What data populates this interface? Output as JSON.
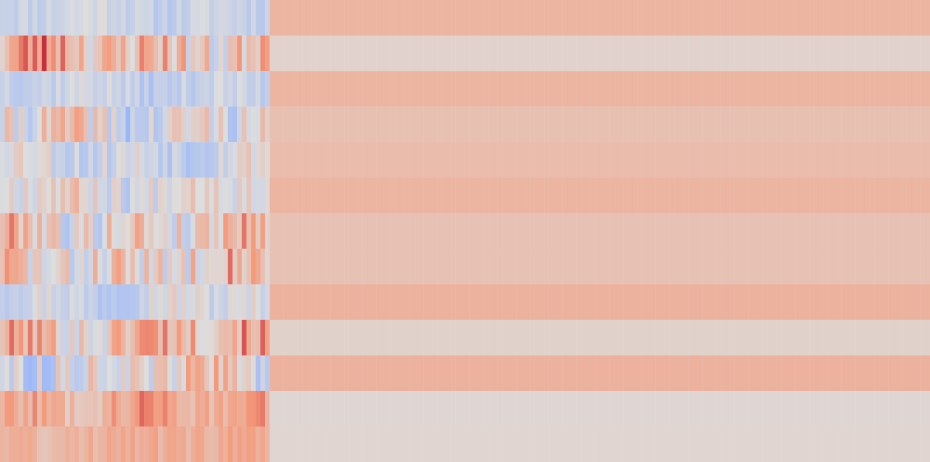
{
  "chart_data": {
    "type": "heatmap",
    "title": "",
    "xlabel": "",
    "ylabel": "",
    "rows": 13,
    "columns": 200,
    "value_range": [
      -1,
      1
    ],
    "colormap": "coolwarm",
    "color_stops": [
      {
        "value": -1.0,
        "color": "#3b4cc0"
      },
      {
        "value": -0.5,
        "color": "#8db0fe"
      },
      {
        "value": 0.0,
        "color": "#dddddd"
      },
      {
        "value": 0.5,
        "color": "#f49a7b"
      },
      {
        "value": 1.0,
        "color": "#b40426"
      }
    ],
    "active_column_count": 58,
    "trailing_row_values": [
      0.3,
      0.08,
      0.3,
      0.22,
      0.25,
      0.3,
      0.21,
      0.21,
      0.32,
      0.09,
      0.32,
      0.05,
      0.06
    ],
    "row_patterns": [
      {
        "row": 0,
        "mean": -0.1,
        "spread": 0.1,
        "seed": 11
      },
      {
        "row": 1,
        "mean": 0.3,
        "spread": 0.35,
        "seed": 23
      },
      {
        "row": 2,
        "mean": -0.12,
        "spread": 0.12,
        "seed": 37
      },
      {
        "row": 3,
        "mean": 0.02,
        "spread": 0.28,
        "seed": 41
      },
      {
        "row": 4,
        "mean": -0.05,
        "spread": 0.18,
        "seed": 53
      },
      {
        "row": 5,
        "mean": 0.08,
        "spread": 0.2,
        "seed": 67
      },
      {
        "row": 6,
        "mean": 0.16,
        "spread": 0.3,
        "seed": 79
      },
      {
        "row": 7,
        "mean": 0.14,
        "spread": 0.32,
        "seed": 83
      },
      {
        "row": 8,
        "mean": -0.06,
        "spread": 0.16,
        "seed": 97
      },
      {
        "row": 9,
        "mean": 0.3,
        "spread": 0.3,
        "seed": 101
      },
      {
        "row": 10,
        "mean": 0.05,
        "spread": 0.28,
        "seed": 113
      },
      {
        "row": 11,
        "mean": 0.38,
        "spread": 0.18,
        "seed": 127
      },
      {
        "row": 12,
        "mean": 0.34,
        "spread": 0.12,
        "seed": 131
      }
    ]
  }
}
